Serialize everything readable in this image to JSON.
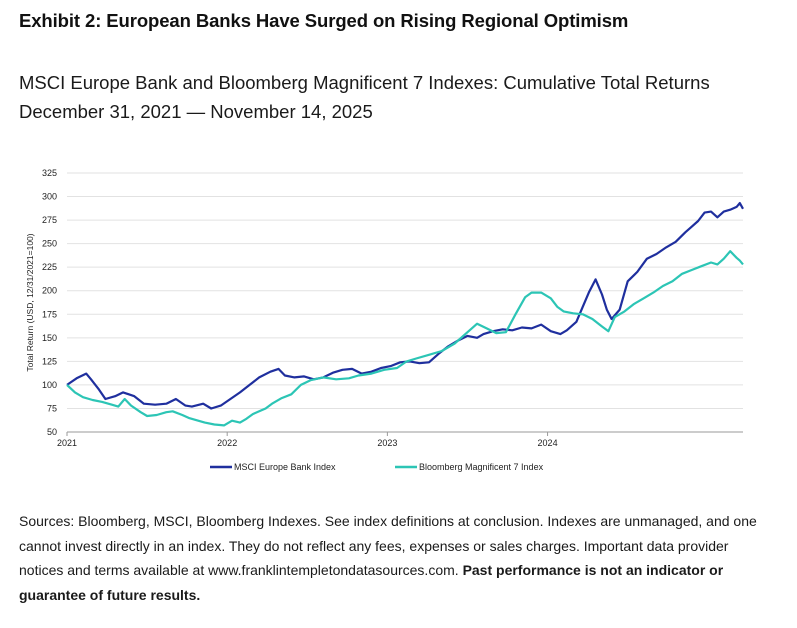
{
  "exhibit_title": "Exhibit 2: European Banks Have Surged on Rising Regional Optimism",
  "subtitle_line1": "MSCI Europe Bank and Bloomberg Magnificent 7 Indexes: Cumulative Total Returns",
  "subtitle_line2": "December 31, 2021 — November 14, 2025",
  "sources_text": "Sources: Bloomberg, MSCI, Bloomberg Indexes. See index definitions at conclusion. Indexes are unmanaged, and one cannot invest directly in an index. They do not reflect any fees, expenses or sales charges. Important data provider notices and terms available at www.franklintempletondatasources.com.",
  "sources_bold": "Past performance is not an indicator or guarantee of future results.",
  "chart_data": {
    "type": "line",
    "ylabel": "Total Return (USD, 12/31/2021=100)",
    "xlabel": "",
    "ylim": [
      50,
      325
    ],
    "yticks": [
      "50",
      "75",
      "100",
      "125",
      "150",
      "175",
      "200",
      "225",
      "250",
      "275",
      "300",
      "325"
    ],
    "xticks": [
      "2021",
      "2022",
      "2023",
      "2024"
    ],
    "grid": "horizontal",
    "legend_position": "bottom",
    "series": [
      {
        "name": "MSCI Europe Bank Index",
        "color": "#1f2f9e",
        "points": [
          [
            0,
            100
          ],
          [
            0.06,
            107
          ],
          [
            0.12,
            112
          ],
          [
            0.15,
            106
          ],
          [
            0.2,
            95
          ],
          [
            0.24,
            85
          ],
          [
            0.3,
            88
          ],
          [
            0.35,
            92
          ],
          [
            0.42,
            88
          ],
          [
            0.48,
            80
          ],
          [
            0.55,
            79
          ],
          [
            0.62,
            80
          ],
          [
            0.68,
            85
          ],
          [
            0.74,
            78
          ],
          [
            0.78,
            77
          ],
          [
            0.85,
            80
          ],
          [
            0.9,
            75
          ],
          [
            0.96,
            78
          ],
          [
            1.02,
            85
          ],
          [
            1.08,
            92
          ],
          [
            1.14,
            100
          ],
          [
            1.2,
            108
          ],
          [
            1.27,
            114
          ],
          [
            1.32,
            117
          ],
          [
            1.36,
            110
          ],
          [
            1.42,
            108
          ],
          [
            1.48,
            109
          ],
          [
            1.54,
            106
          ],
          [
            1.6,
            108
          ],
          [
            1.66,
            113
          ],
          [
            1.72,
            116
          ],
          [
            1.78,
            117
          ],
          [
            1.84,
            112
          ],
          [
            1.9,
            114
          ],
          [
            1.96,
            118
          ],
          [
            2.02,
            120
          ],
          [
            2.08,
            124
          ],
          [
            2.14,
            125
          ],
          [
            2.2,
            123
          ],
          [
            2.26,
            124
          ],
          [
            2.32,
            133
          ],
          [
            2.38,
            141
          ],
          [
            2.44,
            147
          ],
          [
            2.5,
            152
          ],
          [
            2.56,
            150
          ],
          [
            2.6,
            154
          ],
          [
            2.66,
            157
          ],
          [
            2.72,
            159
          ],
          [
            2.78,
            158
          ],
          [
            2.84,
            161
          ],
          [
            2.9,
            160
          ],
          [
            2.96,
            164
          ],
          [
            3.02,
            157
          ],
          [
            3.08,
            154
          ],
          [
            3.12,
            158
          ],
          [
            3.18,
            167
          ],
          [
            3.22,
            183
          ],
          [
            3.26,
            199
          ],
          [
            3.3,
            212
          ],
          [
            3.34,
            196
          ],
          [
            3.37,
            180
          ],
          [
            3.4,
            170
          ],
          [
            3.45,
            180
          ],
          [
            3.5,
            210
          ],
          [
            3.56,
            220
          ],
          [
            3.62,
            234
          ],
          [
            3.68,
            239
          ],
          [
            3.74,
            246
          ],
          [
            3.8,
            252
          ],
          [
            3.86,
            262
          ],
          [
            3.9,
            268
          ],
          [
            3.94,
            274
          ],
          [
            3.98,
            283
          ],
          [
            4.02,
            284
          ],
          [
            4.06,
            278
          ],
          [
            4.1,
            284
          ],
          [
            4.14,
            286
          ],
          [
            4.18,
            289
          ],
          [
            4.2,
            293
          ],
          [
            4.22,
            287
          ]
        ]
      },
      {
        "name": "Bloomberg Magnificent 7 Index",
        "color": "#2cc5b5",
        "points": [
          [
            0,
            100
          ],
          [
            0.05,
            92
          ],
          [
            0.1,
            87
          ],
          [
            0.16,
            84
          ],
          [
            0.22,
            82
          ],
          [
            0.28,
            79
          ],
          [
            0.32,
            77
          ],
          [
            0.36,
            85
          ],
          [
            0.4,
            78
          ],
          [
            0.46,
            71
          ],
          [
            0.5,
            67
          ],
          [
            0.56,
            68
          ],
          [
            0.62,
            71
          ],
          [
            0.66,
            72
          ],
          [
            0.72,
            68
          ],
          [
            0.76,
            65
          ],
          [
            0.8,
            63
          ],
          [
            0.86,
            60
          ],
          [
            0.92,
            58
          ],
          [
            0.98,
            57
          ],
          [
            1.03,
            62
          ],
          [
            1.08,
            60
          ],
          [
            1.12,
            64
          ],
          [
            1.16,
            69
          ],
          [
            1.2,
            72
          ],
          [
            1.24,
            75
          ],
          [
            1.28,
            80
          ],
          [
            1.34,
            86
          ],
          [
            1.4,
            90
          ],
          [
            1.46,
            100
          ],
          [
            1.52,
            105
          ],
          [
            1.6,
            108
          ],
          [
            1.68,
            106
          ],
          [
            1.76,
            107
          ],
          [
            1.82,
            110
          ],
          [
            1.9,
            112
          ],
          [
            1.98,
            116
          ],
          [
            2.06,
            118
          ],
          [
            2.12,
            125
          ],
          [
            2.18,
            128
          ],
          [
            2.26,
            132
          ],
          [
            2.34,
            136
          ],
          [
            2.42,
            144
          ],
          [
            2.5,
            156
          ],
          [
            2.56,
            165
          ],
          [
            2.62,
            160
          ],
          [
            2.68,
            155
          ],
          [
            2.74,
            156
          ],
          [
            2.8,
            175
          ],
          [
            2.86,
            193
          ],
          [
            2.9,
            198
          ],
          [
            2.96,
            198
          ],
          [
            3.02,
            192
          ],
          [
            3.06,
            183
          ],
          [
            3.1,
            178
          ],
          [
            3.16,
            176
          ],
          [
            3.22,
            175
          ],
          [
            3.28,
            170
          ],
          [
            3.34,
            162
          ],
          [
            3.38,
            157
          ],
          [
            3.42,
            172
          ],
          [
            3.48,
            178
          ],
          [
            3.54,
            186
          ],
          [
            3.6,
            192
          ],
          [
            3.66,
            198
          ],
          [
            3.72,
            205
          ],
          [
            3.78,
            210
          ],
          [
            3.84,
            218
          ],
          [
            3.9,
            222
          ],
          [
            3.96,
            226
          ],
          [
            4.02,
            230
          ],
          [
            4.06,
            228
          ],
          [
            4.1,
            234
          ],
          [
            4.14,
            242
          ],
          [
            4.18,
            235
          ],
          [
            4.2,
            232
          ],
          [
            4.22,
            228
          ]
        ]
      }
    ]
  }
}
